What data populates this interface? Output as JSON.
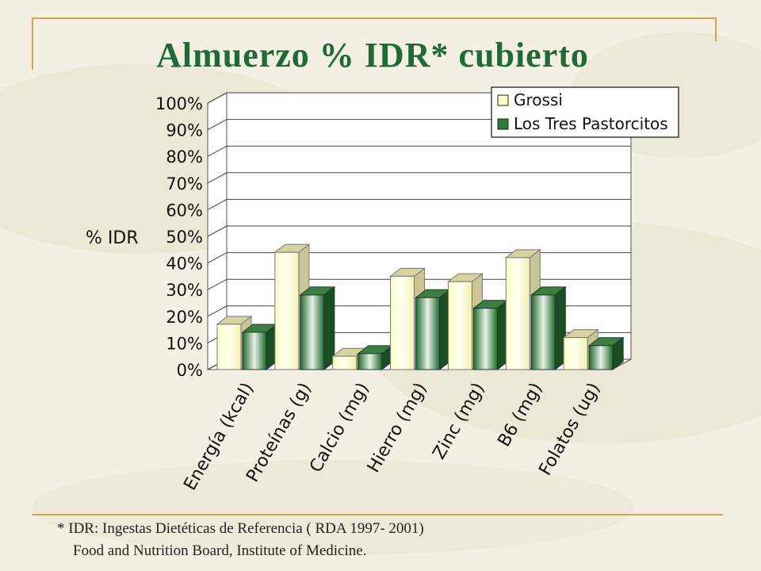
{
  "slide": {
    "title": "Almuerzo  % IDR* cubierto",
    "footnote_line1": "* IDR: Ingestas Dietéticas de Referencia ( RDA 1997- 2001)",
    "footnote_line2": "Food and Nutrition Board, Institute of Medicine."
  },
  "colors": {
    "title": "#1f6b35",
    "accent_line": "#c9a94a",
    "series_grossi": "#ffffc0",
    "series_pastorcitos": "#2d7a36"
  },
  "chart_data": {
    "type": "bar",
    "style": "3d-clustered-column",
    "title": "",
    "ylabel": "% IDR",
    "xlabel": "",
    "categories": [
      "Energía (kcal)",
      "Proteínas (g)",
      "Calcio (mg)",
      "Hierro (mg)",
      "Zinc (mg)",
      "B6 (mg)",
      "Folatos (ug)"
    ],
    "series": [
      {
        "name": "Grossi",
        "values": [
          17,
          44,
          5,
          35,
          33,
          42,
          12
        ]
      },
      {
        "name": "Los Tres Pastorcitos",
        "values": [
          14,
          28,
          6,
          27,
          23,
          28,
          9
        ]
      }
    ],
    "ylim": [
      0,
      100
    ],
    "yticks": [
      "0%",
      "10%",
      "20%",
      "30%",
      "40%",
      "50%",
      "60%",
      "70%",
      "80%",
      "90%",
      "100%"
    ],
    "grid": true,
    "legend": "top-right"
  }
}
